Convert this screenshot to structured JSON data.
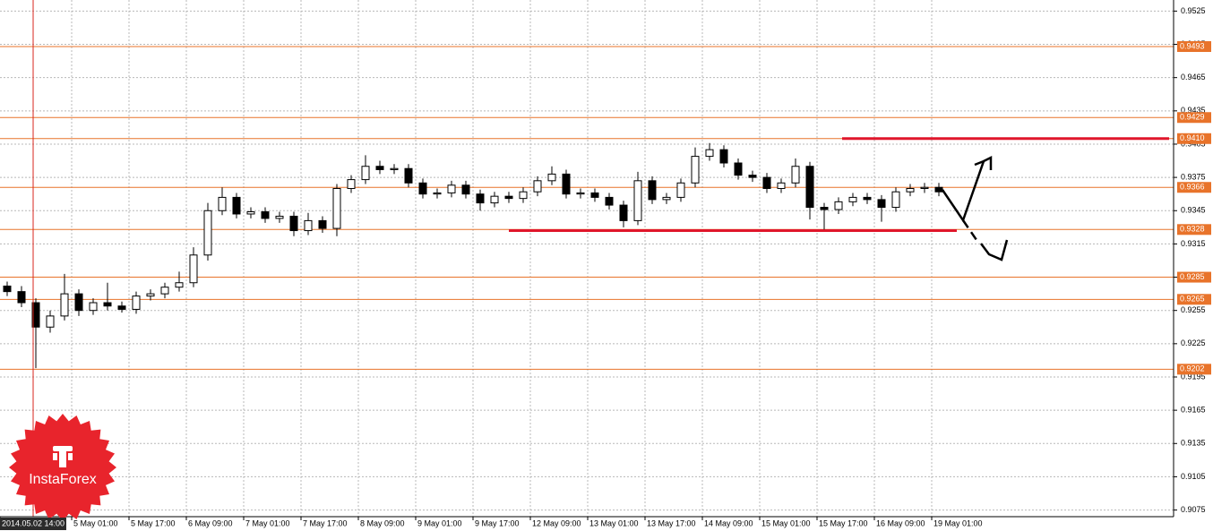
{
  "chart_data": {
    "type": "candlestick",
    "categories": [
      "2014.05.02 14:00",
      null,
      null,
      null,
      null,
      "5 May 01:00",
      null,
      null,
      null,
      "5 May 17:00",
      null,
      null,
      null,
      "6 May 09:00",
      null,
      null,
      null,
      "7 May 01:00",
      null,
      null,
      null,
      "7 May 17:00",
      null,
      null,
      null,
      "8 May 09:00",
      null,
      null,
      null,
      "9 May 01:00",
      null,
      null,
      null,
      "9 May 17:00",
      null,
      null,
      null,
      "12 May 09:00",
      null,
      null,
      null,
      "13 May 01:00",
      null,
      null,
      null,
      "13 May 17:00",
      null,
      null,
      null,
      "14 May 09:00",
      null,
      null,
      null,
      "15 May 01:00",
      null,
      null,
      null,
      "15 May 17:00",
      null,
      null,
      null,
      "16 May 09:00",
      null,
      null,
      null,
      "19 May 01:00"
    ],
    "open": [
      0.9277,
      0.9272,
      0.9262,
      0.924,
      0.925,
      0.927,
      0.9255,
      0.9262,
      0.9259,
      0.9256,
      0.9268,
      0.927,
      0.9276,
      0.928,
      0.9305,
      0.9345,
      0.9357,
      0.9342,
      0.9344,
      0.9338,
      0.934,
      0.9327,
      0.9336,
      0.9329,
      0.9365,
      0.9373,
      0.9385,
      0.9382,
      0.9383,
      0.937,
      0.936,
      0.9361,
      0.9368,
      0.936,
      0.9352,
      0.9358,
      0.9356,
      0.9362,
      0.9372,
      0.9378,
      0.936,
      0.9361,
      0.9357,
      0.935,
      0.9336,
      0.9372,
      0.9355,
      0.9357,
      0.937,
      0.9394,
      0.94,
      0.9388,
      0.9377,
      0.9375,
      0.9365,
      0.937,
      0.9385,
      0.9348,
      0.9346,
      0.9353,
      0.9357,
      0.9355,
      0.9348,
      0.9362,
      0.9365,
      0.9366
    ],
    "high": [
      0.9281,
      0.9277,
      0.9266,
      0.9255,
      0.9288,
      0.9274,
      0.9266,
      0.928,
      0.9263,
      0.9272,
      0.9274,
      0.928,
      0.929,
      0.9312,
      0.9352,
      0.9366,
      0.9361,
      0.9348,
      0.9348,
      0.9344,
      0.9344,
      0.9343,
      0.934,
      0.9369,
      0.9377,
      0.9395,
      0.939,
      0.9387,
      0.9387,
      0.9374,
      0.9365,
      0.9372,
      0.9372,
      0.9364,
      0.9362,
      0.9362,
      0.9366,
      0.9376,
      0.9385,
      0.9382,
      0.9365,
      0.9365,
      0.9361,
      0.9354,
      0.938,
      0.9376,
      0.9361,
      0.9374,
      0.9402,
      0.9406,
      0.9404,
      0.9392,
      0.9381,
      0.9379,
      0.9374,
      0.9392,
      0.9389,
      0.9352,
      0.9357,
      0.9361,
      0.9361,
      0.9359,
      0.9366,
      0.9369,
      0.937,
      0.937
    ],
    "low": [
      0.9268,
      0.9258,
      0.9203,
      0.9235,
      0.9246,
      0.925,
      0.9251,
      0.9255,
      0.9253,
      0.9252,
      0.9264,
      0.9266,
      0.9272,
      0.9276,
      0.93,
      0.9341,
      0.9338,
      0.9338,
      0.9334,
      0.9334,
      0.9322,
      0.9323,
      0.9325,
      0.9322,
      0.9361,
      0.9369,
      0.9378,
      0.9378,
      0.9366,
      0.9356,
      0.9356,
      0.9357,
      0.9356,
      0.9345,
      0.9348,
      0.9352,
      0.9352,
      0.9358,
      0.9368,
      0.9356,
      0.9356,
      0.9353,
      0.9346,
      0.933,
      0.9332,
      0.9351,
      0.9351,
      0.9353,
      0.9366,
      0.939,
      0.9384,
      0.9373,
      0.9371,
      0.9361,
      0.9361,
      0.9366,
      0.9337,
      0.9328,
      0.9342,
      0.9349,
      0.9351,
      0.9335,
      0.9344,
      0.9358,
      0.9361,
      0.9358
    ],
    "close": [
      0.9272,
      0.9262,
      0.924,
      0.925,
      0.927,
      0.9255,
      0.9262,
      0.9259,
      0.9256,
      0.9268,
      0.927,
      0.9276,
      0.928,
      0.9305,
      0.9345,
      0.9357,
      0.9342,
      0.9344,
      0.9338,
      0.934,
      0.9327,
      0.9336,
      0.9329,
      0.9365,
      0.9373,
      0.9385,
      0.9382,
      0.9383,
      0.937,
      0.936,
      0.9361,
      0.9368,
      0.936,
      0.9352,
      0.9358,
      0.9356,
      0.9362,
      0.9372,
      0.9378,
      0.936,
      0.9361,
      0.9357,
      0.935,
      0.9336,
      0.9372,
      0.9355,
      0.9357,
      0.937,
      0.9394,
      0.94,
      0.9388,
      0.9377,
      0.9375,
      0.9365,
      0.937,
      0.9385,
      0.9348,
      0.9346,
      0.9353,
      0.9357,
      0.9355,
      0.9348,
      0.9362,
      0.9365,
      0.9366,
      0.9362
    ],
    "ylim": [
      0.9069,
      0.9535
    ],
    "yticks": [
      0.9075,
      0.9105,
      0.9135,
      0.9165,
      0.9195,
      0.9225,
      0.9255,
      0.9285,
      0.9315,
      0.9345,
      0.9375,
      0.9405,
      0.9435,
      0.9465,
      0.9495,
      0.9525
    ],
    "grid": true,
    "levels": [
      0.9493,
      0.9429,
      {
        "value": 0.941,
        "label": "0.9410"
      },
      0.9366,
      0.9328,
      0.9285,
      0.9265,
      0.9202
    ],
    "level_color": "#e8732a",
    "marked_levels": [
      0.941,
      0.9327
    ],
    "marked_color": "#e0162b",
    "watermark": "InstaForex"
  }
}
